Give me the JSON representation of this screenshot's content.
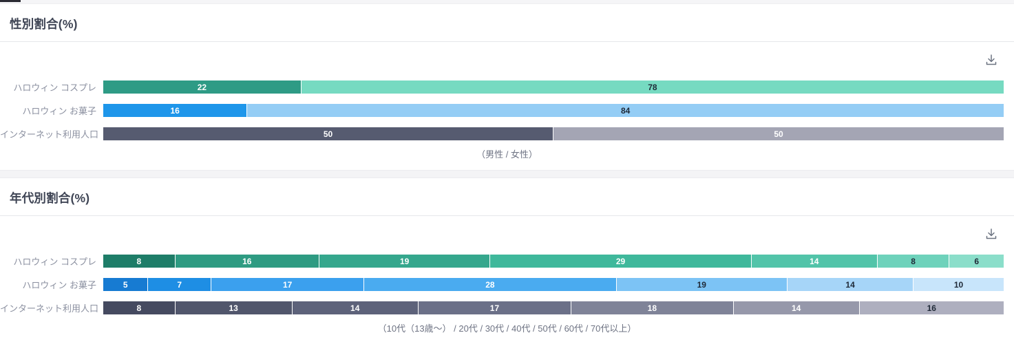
{
  "icons": {
    "download": "download-icon"
  },
  "chart_data": [
    {
      "type": "bar",
      "variant": "horizontal-stacked-100percent",
      "title": "性別割合(%)",
      "caption": "（男性 / 女性）",
      "legend_position": "caption-below",
      "xlim": [
        0,
        100
      ],
      "grid": false,
      "categories": [
        "ハロウィン コスプレ",
        "ハロウィン お菓子",
        "インターネット利用人口"
      ],
      "series_labels": [
        "男性",
        "女性"
      ],
      "rows": [
        {
          "label": "ハロウィン コスプレ",
          "values": [
            22,
            78
          ],
          "colors": [
            "#2E9B85",
            "#76DAC1"
          ],
          "text_colors": [
            "#ffffff",
            "#1f2937"
          ]
        },
        {
          "label": "ハロウィン お菓子",
          "values": [
            16,
            84
          ],
          "colors": [
            "#1E96EA",
            "#94CDF5"
          ],
          "text_colors": [
            "#ffffff",
            "#1f2937"
          ]
        },
        {
          "label": "インターネット利用人口",
          "values": [
            50,
            50
          ],
          "colors": [
            "#565B70",
            "#A4A5B4"
          ],
          "text_colors": [
            "#ffffff",
            "#ffffff"
          ]
        }
      ]
    },
    {
      "type": "bar",
      "variant": "horizontal-stacked-100percent",
      "title": "年代別割合(%)",
      "caption": "（10代（13歳〜） / 20代 / 30代 / 40代 / 50代 / 60代 / 70代以上）",
      "legend_position": "caption-below",
      "xlim": [
        0,
        100
      ],
      "grid": false,
      "categories": [
        "ハロウィン コスプレ",
        "ハロウィン お菓子",
        "インターネット利用人口"
      ],
      "series_labels": [
        "10代（13歳〜）",
        "20代",
        "30代",
        "40代",
        "50代",
        "60代",
        "70代以上"
      ],
      "rows": [
        {
          "label": "ハロウィン コスプレ",
          "values": [
            8,
            16,
            19,
            29,
            14,
            8,
            6
          ],
          "colors": [
            "#1E7D68",
            "#2E9B82",
            "#35A78D",
            "#3FB89B",
            "#52C4A9",
            "#6ED2BB",
            "#8BDECA"
          ],
          "text_colors": [
            "#ffffff",
            "#ffffff",
            "#ffffff",
            "#ffffff",
            "#ffffff",
            "#1f2937",
            "#1f2937"
          ]
        },
        {
          "label": "ハロウィン お菓子",
          "values": [
            5,
            7,
            17,
            28,
            19,
            14,
            10
          ],
          "colors": [
            "#177BD2",
            "#1E8EE4",
            "#3BA0EE",
            "#4AABF0",
            "#7CC3F5",
            "#A6D5F8",
            "#C8E5FB"
          ],
          "text_colors": [
            "#ffffff",
            "#ffffff",
            "#ffffff",
            "#ffffff",
            "#1f2937",
            "#1f2937",
            "#1f2937"
          ]
        },
        {
          "label": "インターネット利用人口",
          "values": [
            8,
            13,
            14,
            17,
            18,
            14,
            16
          ],
          "colors": [
            "#454A60",
            "#51566C",
            "#5D627A",
            "#6B7088",
            "#7F8398",
            "#9698AA",
            "#AEAFBF"
          ],
          "text_colors": [
            "#ffffff",
            "#ffffff",
            "#ffffff",
            "#ffffff",
            "#ffffff",
            "#ffffff",
            "#1f2937"
          ]
        }
      ]
    }
  ]
}
